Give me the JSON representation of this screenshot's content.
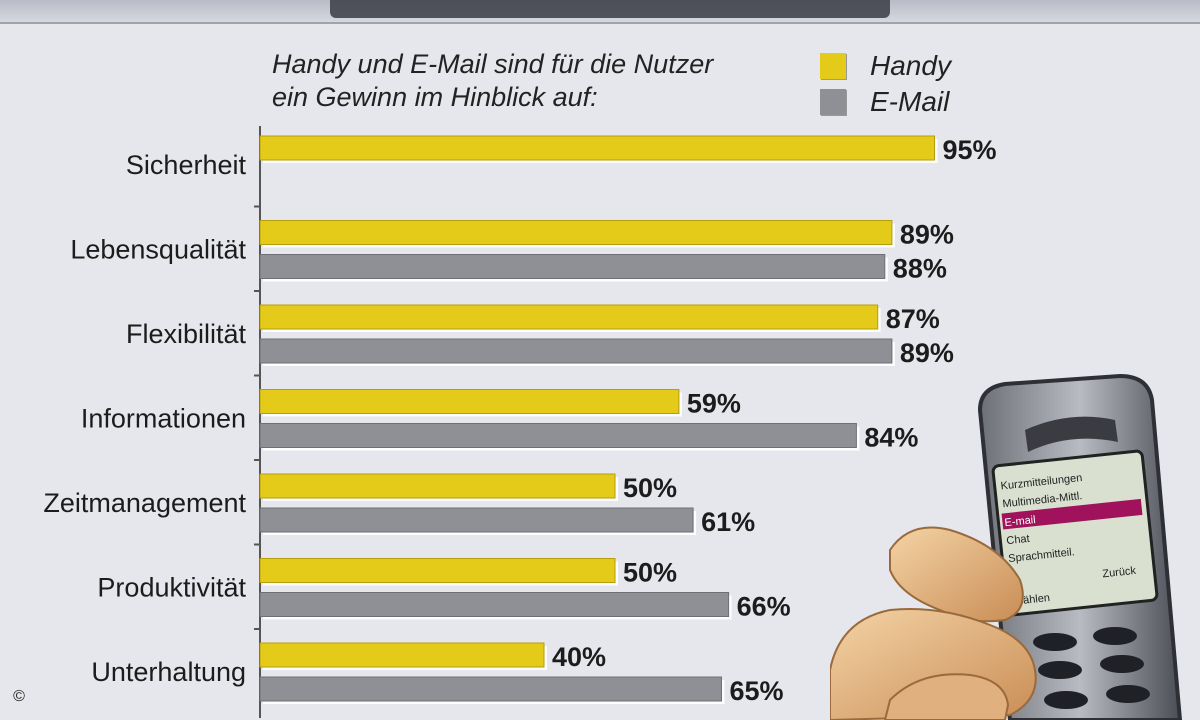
{
  "chart_data": {
    "type": "bar",
    "orientation": "horizontal",
    "title": "",
    "subtitle": "Handy und E-Mail sind für die Nutzer\nein Gewinn im Hinblick auf:",
    "xlabel": "",
    "ylabel": "",
    "xlim": [
      0,
      100
    ],
    "grid": false,
    "legend_position": "top-right",
    "value_suffix": "%",
    "categories": [
      "Sicherheit",
      "Lebensqualität",
      "Flexibilität",
      "Informationen",
      "Zeitmanagement",
      "Produktivität",
      "Unterhaltung"
    ],
    "series": [
      {
        "name": "Handy",
        "color": "#e4cb1a",
        "values": [
          95,
          89,
          87,
          59,
          50,
          50,
          40
        ]
      },
      {
        "name": "E-Mail",
        "color": "#8f9095",
        "values": [
          null,
          88,
          89,
          84,
          61,
          66,
          65
        ]
      }
    ]
  },
  "copyright": "©",
  "decoration": {
    "phone_screen_text": [
      "Kurzmitteilungen",
      "Multimedia-Mittl.",
      "E-mail",
      "Chat",
      "Sprachmitteil.",
      "Wählen",
      "Zurück"
    ],
    "phone_highlight_color": "#a0135c",
    "icon": "phone-in-hand-illustration"
  }
}
